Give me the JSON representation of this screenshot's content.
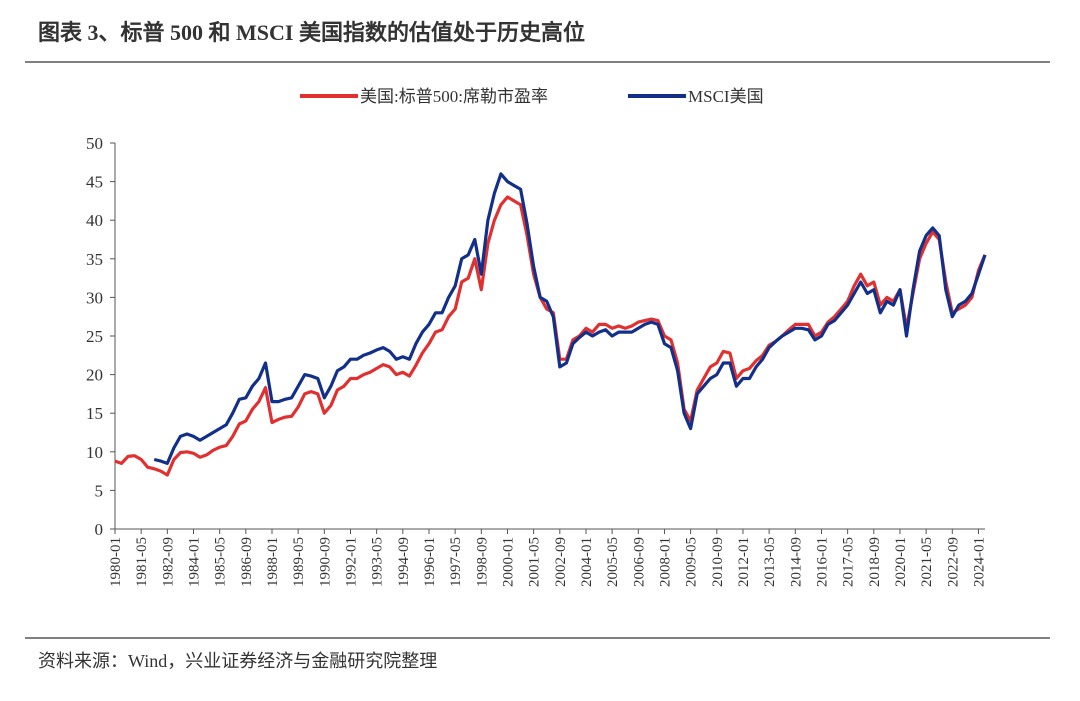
{
  "chart_data": {
    "type": "line",
    "title": "图表 3、标普 500 和 MSCI 美国指数的估值处于历史高位",
    "source": "资料来源：Wind，兴业证券经济与金融研究院整理",
    "x": [
      "1980-01",
      "1980-05",
      "1980-09",
      "1981-01",
      "1981-05",
      "1981-09",
      "1982-01",
      "1982-05",
      "1982-09",
      "1983-01",
      "1983-05",
      "1983-09",
      "1984-01",
      "1984-05",
      "1984-09",
      "1985-01",
      "1985-05",
      "1985-09",
      "1986-01",
      "1986-05",
      "1986-09",
      "1987-01",
      "1987-05",
      "1987-09",
      "1988-01",
      "1988-05",
      "1988-09",
      "1989-01",
      "1989-05",
      "1989-09",
      "1990-01",
      "1990-05",
      "1990-09",
      "1991-01",
      "1991-05",
      "1991-09",
      "1992-01",
      "1992-05",
      "1992-09",
      "1993-01",
      "1993-05",
      "1993-09",
      "1994-01",
      "1994-05",
      "1994-09",
      "1995-01",
      "1995-05",
      "1995-09",
      "1996-01",
      "1996-05",
      "1996-09",
      "1997-01",
      "1997-05",
      "1997-09",
      "1998-01",
      "1998-05",
      "1998-09",
      "1999-01",
      "1999-05",
      "1999-09",
      "2000-01",
      "2000-05",
      "2000-09",
      "2001-01",
      "2001-05",
      "2001-09",
      "2002-01",
      "2002-05",
      "2002-09",
      "2003-01",
      "2003-05",
      "2003-09",
      "2004-01",
      "2004-05",
      "2004-09",
      "2005-01",
      "2005-05",
      "2005-09",
      "2006-01",
      "2006-05",
      "2006-09",
      "2007-01",
      "2007-05",
      "2007-09",
      "2008-01",
      "2008-05",
      "2008-09",
      "2009-01",
      "2009-05",
      "2009-09",
      "2010-01",
      "2010-05",
      "2010-09",
      "2011-01",
      "2011-05",
      "2011-09",
      "2012-01",
      "2012-05",
      "2012-09",
      "2013-01",
      "2013-05",
      "2013-09",
      "2014-01",
      "2014-05",
      "2014-09",
      "2015-01",
      "2015-05",
      "2015-09",
      "2016-01",
      "2016-05",
      "2016-09",
      "2017-01",
      "2017-05",
      "2017-09",
      "2018-01",
      "2018-05",
      "2018-09",
      "2019-01",
      "2019-05",
      "2019-09",
      "2020-01",
      "2020-05",
      "2020-09",
      "2021-01",
      "2021-05",
      "2021-09",
      "2022-01",
      "2022-05",
      "2022-09",
      "2023-01",
      "2023-05",
      "2023-09",
      "2024-01",
      "2024-05"
    ],
    "series": [
      {
        "name": "美国:标普500:席勒市盈率",
        "color": "#e03030",
        "values": [
          8.8,
          8.5,
          9.4,
          9.5,
          9.0,
          8.0,
          7.8,
          7.5,
          7.0,
          9.0,
          9.9,
          10.0,
          9.8,
          9.3,
          9.6,
          10.2,
          10.6,
          10.8,
          12.0,
          13.6,
          14.0,
          15.5,
          16.5,
          18.3,
          13.8,
          14.2,
          14.5,
          14.6,
          15.8,
          17.5,
          17.8,
          17.5,
          15.0,
          16.0,
          18.0,
          18.5,
          19.5,
          19.5,
          20.0,
          20.3,
          20.8,
          21.3,
          21.0,
          20.0,
          20.3,
          19.8,
          21.2,
          22.8,
          24.0,
          25.5,
          25.8,
          27.5,
          28.5,
          32.0,
          32.5,
          35.0,
          31.0,
          37.0,
          40.0,
          42.0,
          43.0,
          42.5,
          42.0,
          38.0,
          33.0,
          30.0,
          28.5,
          28.0,
          22.0,
          22.0,
          24.5,
          25.0,
          26.0,
          25.5,
          26.5,
          26.5,
          26.0,
          26.3,
          26.0,
          26.3,
          26.8,
          27.0,
          27.2,
          27.0,
          25.0,
          24.5,
          21.5,
          15.5,
          14.0,
          18.0,
          19.5,
          21.0,
          21.5,
          23.0,
          22.8,
          19.5,
          20.5,
          20.8,
          21.8,
          22.5,
          23.8,
          24.3,
          25.0,
          25.8,
          26.5,
          26.5,
          26.5,
          25.0,
          25.5,
          26.8,
          27.5,
          28.5,
          29.5,
          31.5,
          33.0,
          31.5,
          32.0,
          29.0,
          30.0,
          29.5,
          31.0,
          26.0,
          30.5,
          35.0,
          37.0,
          38.5,
          37.5,
          32.0,
          28.0,
          28.5,
          29.0,
          30.0,
          33.5,
          35.5
        ]
      },
      {
        "name": "MSCI美国",
        "color": "#12308a",
        "values": [
          null,
          null,
          null,
          null,
          null,
          null,
          9.0,
          8.8,
          8.5,
          10.5,
          12.0,
          12.3,
          12.0,
          11.5,
          12.0,
          12.5,
          13.0,
          13.5,
          15.0,
          16.8,
          17.0,
          18.5,
          19.5,
          21.5,
          16.5,
          16.5,
          16.8,
          17.0,
          18.5,
          20.0,
          19.8,
          19.5,
          17.0,
          18.5,
          20.5,
          21.0,
          22.0,
          22.0,
          22.5,
          22.8,
          23.2,
          23.5,
          23.0,
          22.0,
          22.3,
          22.0,
          24.0,
          25.5,
          26.5,
          28.0,
          28.0,
          30.0,
          31.5,
          35.0,
          35.5,
          37.5,
          33.0,
          40.0,
          43.5,
          46.0,
          45.0,
          44.5,
          44.0,
          39.5,
          34.0,
          30.0,
          29.5,
          27.5,
          21.0,
          21.5,
          24.0,
          24.8,
          25.5,
          25.0,
          25.5,
          25.8,
          25.0,
          25.5,
          25.5,
          25.5,
          26.0,
          26.5,
          26.8,
          26.5,
          24.0,
          23.5,
          20.5,
          15.0,
          13.0,
          17.5,
          18.5,
          19.5,
          20.0,
          21.5,
          21.5,
          18.5,
          19.5,
          19.5,
          21.0,
          22.0,
          23.5,
          24.3,
          25.0,
          25.5,
          26.0,
          26.0,
          25.8,
          24.5,
          25.0,
          26.5,
          27.0,
          28.0,
          29.0,
          30.5,
          32.0,
          30.5,
          31.0,
          28.0,
          29.5,
          29.0,
          31.0,
          25.0,
          31.0,
          36.0,
          38.0,
          39.0,
          38.0,
          31.0,
          27.5,
          29.0,
          29.5,
          30.5,
          33.0,
          35.5
        ]
      }
    ],
    "xlim": [
      "1980-01",
      "2024-05"
    ],
    "xticks": [
      "1980-01",
      "1981-05",
      "1982-09",
      "1984-01",
      "1985-05",
      "1986-09",
      "1988-01",
      "1989-05",
      "1990-09",
      "1992-01",
      "1993-05",
      "1994-09",
      "1996-01",
      "1997-05",
      "1998-09",
      "2000-01",
      "2001-05",
      "2002-09",
      "2004-01",
      "2005-05",
      "2006-09",
      "2008-01",
      "2009-05",
      "2010-09",
      "2012-01",
      "2013-05",
      "2014-09",
      "2016-01",
      "2017-05",
      "2018-09",
      "2020-01",
      "2021-05",
      "2022-09",
      "2024-01"
    ],
    "ylim": [
      0,
      50
    ],
    "yticks": [
      0,
      5,
      10,
      15,
      20,
      25,
      30,
      35,
      40,
      45,
      50
    ],
    "grid": false,
    "legend": "top"
  }
}
